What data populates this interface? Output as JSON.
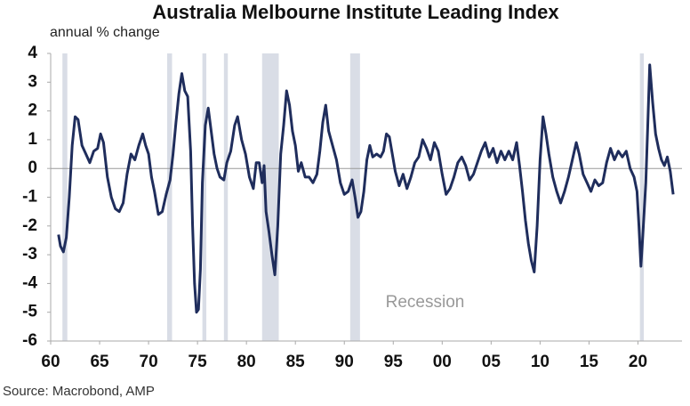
{
  "chart_data": {
    "type": "line",
    "title": "Australia Melbourne Institute Leading Index",
    "subtitle": "annual % change",
    "annotation": "Recession",
    "source": "Source: Macrobond, AMP",
    "xlim": [
      1960,
      2024.5
    ],
    "ylim": [
      -6,
      4
    ],
    "yticks": [
      4,
      3,
      2,
      1,
      0,
      -1,
      -2,
      -3,
      -4,
      -5,
      -6
    ],
    "xticks": [
      {
        "value": 1960,
        "label": "60"
      },
      {
        "value": 1965,
        "label": "65"
      },
      {
        "value": 1970,
        "label": "70"
      },
      {
        "value": 1975,
        "label": "75"
      },
      {
        "value": 1980,
        "label": "80"
      },
      {
        "value": 1985,
        "label": "85"
      },
      {
        "value": 1990,
        "label": "90"
      },
      {
        "value": 1995,
        "label": "95"
      },
      {
        "value": 2000,
        "label": "00"
      },
      {
        "value": 2005,
        "label": "05"
      },
      {
        "value": 2010,
        "label": "10"
      },
      {
        "value": 2015,
        "label": "15"
      },
      {
        "value": 2020,
        "label": "20"
      }
    ],
    "recessions": [
      [
        1961.2,
        1961.7
      ],
      [
        1971.9,
        1972.4
      ],
      [
        1975.5,
        1975.9
      ],
      [
        1977.7,
        1978.1
      ],
      [
        1981.6,
        1983.3
      ],
      [
        1990.6,
        1991.6
      ],
      [
        2020.2,
        2020.6
      ]
    ],
    "recession_color": "#d9dde6",
    "x": [
      1960.8,
      1961.0,
      1961.3,
      1961.6,
      1961.9,
      1962.2,
      1962.5,
      1962.8,
      1963.2,
      1963.6,
      1964.0,
      1964.4,
      1964.8,
      1965.1,
      1965.4,
      1965.8,
      1966.2,
      1966.6,
      1967.0,
      1967.4,
      1967.8,
      1968.2,
      1968.6,
      1969.0,
      1969.4,
      1969.7,
      1970.0,
      1970.3,
      1970.6,
      1971.0,
      1971.4,
      1971.8,
      1972.2,
      1972.5,
      1972.8,
      1973.1,
      1973.4,
      1973.7,
      1974.0,
      1974.3,
      1974.5,
      1974.7,
      1974.9,
      1975.1,
      1975.3,
      1975.5,
      1975.8,
      1976.1,
      1976.4,
      1976.7,
      1977.0,
      1977.3,
      1977.7,
      1978.0,
      1978.4,
      1978.8,
      1979.1,
      1979.5,
      1979.9,
      1980.3,
      1980.7,
      1981.0,
      1981.3,
      1981.6,
      1981.8,
      1982.0,
      1982.3,
      1982.6,
      1982.9,
      1983.2,
      1983.5,
      1983.8,
      1984.1,
      1984.4,
      1984.7,
      1985.0,
      1985.3,
      1985.6,
      1986.0,
      1986.4,
      1986.8,
      1987.2,
      1987.5,
      1987.8,
      1988.1,
      1988.4,
      1988.8,
      1989.2,
      1989.6,
      1990.0,
      1990.4,
      1990.8,
      1991.1,
      1991.4,
      1991.7,
      1992.0,
      1992.3,
      1992.6,
      1992.9,
      1993.3,
      1993.7,
      1994.0,
      1994.3,
      1994.6,
      1994.9,
      1995.2,
      1995.6,
      1996.0,
      1996.4,
      1996.8,
      1997.2,
      1997.6,
      1998.0,
      1998.4,
      1998.8,
      1999.2,
      1999.6,
      2000.0,
      2000.4,
      2000.8,
      2001.2,
      2001.6,
      2002.0,
      2002.4,
      2002.8,
      2003.2,
      2003.6,
      2004.0,
      2004.4,
      2004.8,
      2005.2,
      2005.6,
      2006.0,
      2006.4,
      2006.8,
      2007.2,
      2007.6,
      2007.9,
      2008.2,
      2008.5,
      2008.8,
      2009.1,
      2009.4,
      2009.7,
      2010.0,
      2010.3,
      2010.6,
      2010.9,
      2011.3,
      2011.7,
      2012.1,
      2012.5,
      2012.9,
      2013.3,
      2013.7,
      2014.0,
      2014.4,
      2014.8,
      2015.2,
      2015.6,
      2016.0,
      2016.4,
      2016.8,
      2017.2,
      2017.6,
      2018.0,
      2018.4,
      2018.8,
      2019.2,
      2019.6,
      2019.9,
      2020.1,
      2020.3,
      2020.5,
      2020.8,
      2021.0,
      2021.2,
      2021.5,
      2021.8,
      2022.1,
      2022.4,
      2022.7,
      2023.0,
      2023.3,
      2023.6
    ],
    "series": [
      {
        "name": "Leading Index",
        "color": "#1f2d5c",
        "values": [
          -2.3,
          -2.7,
          -2.9,
          -2.4,
          -1.0,
          0.8,
          1.8,
          1.7,
          0.8,
          0.5,
          0.2,
          0.6,
          0.7,
          1.2,
          0.9,
          -0.3,
          -1.0,
          -1.4,
          -1.5,
          -1.2,
          -0.2,
          0.5,
          0.3,
          0.8,
          1.2,
          0.8,
          0.5,
          -0.3,
          -0.8,
          -1.6,
          -1.5,
          -0.9,
          -0.4,
          0.5,
          1.6,
          2.6,
          3.3,
          2.7,
          2.5,
          0.6,
          -2.0,
          -4.0,
          -5.0,
          -4.9,
          -3.5,
          -0.5,
          1.5,
          2.1,
          1.3,
          0.5,
          0.0,
          -0.3,
          -0.4,
          0.2,
          0.6,
          1.5,
          1.8,
          1.0,
          0.5,
          -0.3,
          -0.7,
          0.2,
          0.2,
          -0.5,
          0.1,
          -1.5,
          -2.2,
          -3.0,
          -3.7,
          -2.0,
          0.5,
          1.5,
          2.7,
          2.2,
          1.3,
          0.8,
          -0.1,
          0.2,
          -0.3,
          -0.3,
          -0.5,
          -0.2,
          0.6,
          1.6,
          2.2,
          1.3,
          0.8,
          0.3,
          -0.5,
          -0.9,
          -0.8,
          -0.4,
          -1.0,
          -1.7,
          -1.5,
          -0.8,
          0.3,
          0.8,
          0.4,
          0.5,
          0.4,
          0.6,
          1.2,
          1.1,
          0.5,
          -0.1,
          -0.6,
          -0.2,
          -0.7,
          -0.3,
          0.2,
          0.4,
          1.0,
          0.7,
          0.3,
          0.9,
          0.6,
          -0.2,
          -0.9,
          -0.7,
          -0.3,
          0.2,
          0.4,
          0.1,
          -0.4,
          -0.2,
          0.2,
          0.6,
          0.9,
          0.4,
          0.7,
          0.2,
          0.6,
          0.3,
          0.6,
          0.3,
          0.9,
          0.1,
          -0.8,
          -1.8,
          -2.6,
          -3.2,
          -3.6,
          -2.0,
          0.3,
          1.8,
          1.2,
          0.5,
          -0.3,
          -0.8,
          -1.2,
          -0.8,
          -0.3,
          0.3,
          0.9,
          0.5,
          -0.2,
          -0.5,
          -0.8,
          -0.4,
          -0.6,
          -0.5,
          0.2,
          0.7,
          0.3,
          0.6,
          0.4,
          0.6,
          0.0,
          -0.3,
          -0.8,
          -2.0,
          -3.4,
          -2.3,
          -0.5,
          1.5,
          3.6,
          2.3,
          1.2,
          0.7,
          0.3,
          0.1,
          0.4,
          -0.1,
          -0.9
        ]
      }
    ]
  }
}
